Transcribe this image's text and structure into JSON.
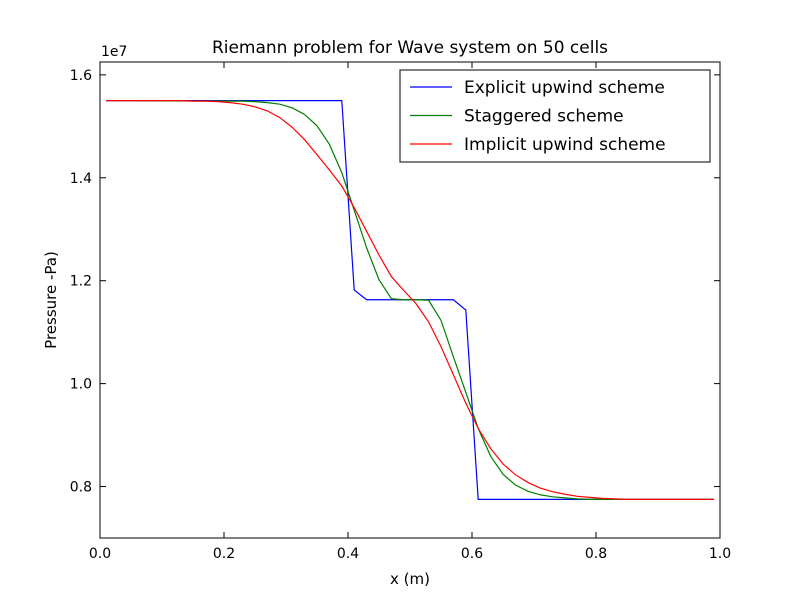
{
  "chart_data": {
    "type": "line",
    "title": "Riemann problem for Wave system on 50 cells",
    "xlabel": "x (m)",
    "ylabel": "Pressure -Pa)",
    "offset_label": "1e7",
    "xlim": [
      0.0,
      1.0
    ],
    "ylim": [
      0.7,
      1.625
    ],
    "x_ticks": [
      0.0,
      0.2,
      0.4,
      0.6,
      0.8,
      1.0
    ],
    "x_tick_labels": [
      "0.0",
      "0.2",
      "0.4",
      "0.6",
      "0.8",
      "1.0"
    ],
    "y_ticks": [
      0.8,
      1.0,
      1.2,
      1.4,
      1.6
    ],
    "y_tick_labels": [
      "0.8",
      "1.0",
      "1.2",
      "1.4",
      "1.6"
    ],
    "grid": false,
    "legend_position": "top-right",
    "series": [
      {
        "name": "Explicit upwind scheme",
        "color": "#0000ff",
        "x": [
          0.01,
          0.39,
          0.41,
          0.43,
          0.57,
          0.59,
          0.61,
          0.99
        ],
        "y": [
          1.55,
          1.55,
          1.182,
          1.163,
          1.163,
          1.143,
          0.775,
          0.775
        ]
      },
      {
        "name": "Staggered scheme",
        "color": "#008000",
        "x": [
          0.01,
          0.21,
          0.23,
          0.25,
          0.27,
          0.29,
          0.31,
          0.33,
          0.35,
          0.37,
          0.39,
          0.41,
          0.43,
          0.45,
          0.47,
          0.49,
          0.51,
          0.53,
          0.55,
          0.57,
          0.59,
          0.61,
          0.63,
          0.65,
          0.67,
          0.69,
          0.71,
          0.73,
          0.75,
          0.77,
          0.79,
          0.99
        ],
        "y": [
          1.55,
          1.549,
          1.549,
          1.548,
          1.546,
          1.543,
          1.536,
          1.523,
          1.501,
          1.465,
          1.41,
          1.337,
          1.264,
          1.202,
          1.165,
          1.163,
          1.163,
          1.162,
          1.123,
          1.052,
          0.983,
          0.913,
          0.859,
          0.824,
          0.803,
          0.791,
          0.784,
          0.78,
          0.778,
          0.776,
          0.775,
          0.775
        ]
      },
      {
        "name": "Implicit upwind scheme",
        "color": "#ff0000",
        "x": [
          0.01,
          0.13,
          0.15,
          0.17,
          0.19,
          0.21,
          0.23,
          0.25,
          0.27,
          0.29,
          0.31,
          0.33,
          0.35,
          0.37,
          0.39,
          0.41,
          0.43,
          0.45,
          0.47,
          0.49,
          0.51,
          0.53,
          0.55,
          0.57,
          0.59,
          0.61,
          0.63,
          0.65,
          0.67,
          0.69,
          0.71,
          0.73,
          0.75,
          0.77,
          0.79,
          0.81,
          0.83,
          0.85,
          0.87,
          0.99
        ],
        "y": [
          1.55,
          1.55,
          1.549,
          1.549,
          1.548,
          1.546,
          1.543,
          1.538,
          1.53,
          1.517,
          1.498,
          1.474,
          1.445,
          1.415,
          1.384,
          1.342,
          1.296,
          1.25,
          1.208,
          1.181,
          1.155,
          1.12,
          1.072,
          1.017,
          0.962,
          0.913,
          0.874,
          0.844,
          0.823,
          0.808,
          0.797,
          0.79,
          0.785,
          0.781,
          0.779,
          0.777,
          0.776,
          0.775,
          0.775,
          0.775
        ]
      }
    ]
  }
}
